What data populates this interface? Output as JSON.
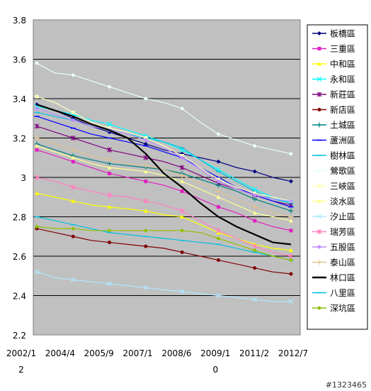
{
  "chart_data": {
    "type": "line",
    "title": "",
    "xlabel": "",
    "ylabel": "",
    "ylim": [
      2.2,
      3.8
    ],
    "y_ticks": [
      "3.8",
      "3.6",
      "3.4",
      "3.2",
      "3",
      "2.8",
      "2.6",
      "2.4",
      "2.2"
    ],
    "x_tick_labels": [
      {
        "line1": "2002/1",
        "line2": "2"
      },
      {
        "line1": "2004/4",
        "line2": ""
      },
      {
        "line1": "2005/9",
        "line2": ""
      },
      {
        "line1": "2007/1",
        "line2": ""
      },
      {
        "line1": "2008/6",
        "line2": ""
      },
      {
        "line1": "2009/1",
        "line2": "0"
      },
      {
        "line1": "2011/2",
        "line2": ""
      },
      {
        "line1": "2012/7",
        "line2": ""
      }
    ],
    "x": [
      0,
      1,
      2,
      3,
      4,
      5,
      6,
      7,
      8,
      9,
      10,
      11,
      12,
      13,
      14
    ],
    "grid": "horizontal",
    "legend_position": "right",
    "plot_background": "#c0c0c0",
    "series": [
      {
        "name": "板橋區",
        "color": "#000080",
        "marker": "diamond",
        "values": [
          3.37,
          3.34,
          3.3,
          3.26,
          3.23,
          3.2,
          3.17,
          3.14,
          3.12,
          3.1,
          3.08,
          3.05,
          3.03,
          3.0,
          2.98
        ]
      },
      {
        "name": "三重區",
        "color": "#e020c0",
        "marker": "square",
        "values": [
          3.14,
          3.11,
          3.08,
          3.05,
          3.02,
          3.0,
          2.98,
          2.96,
          2.93,
          2.89,
          2.85,
          2.82,
          2.78,
          2.75,
          2.73
        ]
      },
      {
        "name": "中和區",
        "color": "#ffff00",
        "marker": "triangle",
        "values": [
          2.92,
          2.9,
          2.88,
          2.86,
          2.85,
          2.84,
          2.83,
          2.81,
          2.8,
          2.76,
          2.72,
          2.69,
          2.66,
          2.64,
          2.63
        ]
      },
      {
        "name": "永和區",
        "color": "#00ffff",
        "marker": "x",
        "values": [
          3.36,
          3.34,
          3.32,
          3.29,
          3.27,
          3.24,
          3.21,
          3.18,
          3.14,
          3.09,
          3.04,
          2.99,
          2.94,
          2.9,
          2.87
        ]
      },
      {
        "name": "新莊區",
        "color": "#800080",
        "marker": "star",
        "values": [
          3.26,
          3.23,
          3.2,
          3.17,
          3.14,
          3.12,
          3.1,
          3.08,
          3.05,
          3.01,
          2.97,
          2.94,
          2.91,
          2.88,
          2.86
        ]
      },
      {
        "name": "新店區",
        "color": "#800000",
        "marker": "circle",
        "values": [
          2.74,
          2.72,
          2.7,
          2.68,
          2.67,
          2.66,
          2.65,
          2.64,
          2.62,
          2.6,
          2.58,
          2.56,
          2.54,
          2.52,
          2.51
        ]
      },
      {
        "name": "土城區",
        "color": "#008080",
        "marker": "plus",
        "values": [
          3.17,
          3.14,
          3.11,
          3.09,
          3.07,
          3.06,
          3.05,
          3.04,
          3.02,
          2.99,
          2.96,
          2.93,
          2.89,
          2.86,
          2.83
        ]
      },
      {
        "name": "蘆洲區",
        "color": "#0000ff",
        "marker": "dash",
        "values": [
          3.31,
          3.28,
          3.25,
          3.22,
          3.2,
          3.18,
          3.16,
          3.13,
          3.1,
          3.05,
          3.0,
          2.95,
          2.91,
          2.88,
          2.85
        ]
      },
      {
        "name": "樹林區",
        "color": "#00c0e0",
        "marker": "dash",
        "values": [
          3.33,
          3.31,
          3.29,
          3.26,
          3.24,
          3.22,
          3.2,
          3.18,
          3.15,
          3.09,
          3.03,
          2.98,
          2.93,
          2.89,
          2.87
        ]
      },
      {
        "name": "鶯歌區",
        "color": "#e8ffff",
        "marker": "diamond",
        "values": [
          3.58,
          3.53,
          3.52,
          3.49,
          3.46,
          3.43,
          3.4,
          3.38,
          3.35,
          3.28,
          3.22,
          3.19,
          3.16,
          3.14,
          3.12
        ]
      },
      {
        "name": "三峽區",
        "color": "#ffffc0",
        "marker": "square",
        "values": [
          3.41,
          3.38,
          3.33,
          3.28,
          3.25,
          3.23,
          3.2,
          3.16,
          3.11,
          3.05,
          2.99,
          2.95,
          2.92,
          2.9,
          2.88
        ]
      },
      {
        "name": "淡水區",
        "color": "#ffff90",
        "marker": "triangle",
        "values": [
          3.16,
          3.13,
          3.1,
          3.07,
          3.05,
          3.04,
          3.03,
          3.01,
          2.98,
          2.94,
          2.9,
          2.86,
          2.82,
          2.8,
          2.78
        ]
      },
      {
        "name": "汐止區",
        "color": "#b0e8ff",
        "marker": "x",
        "values": [
          2.52,
          2.49,
          2.48,
          2.47,
          2.46,
          2.45,
          2.44,
          2.43,
          2.42,
          2.41,
          2.4,
          2.39,
          2.38,
          2.37,
          2.37
        ]
      },
      {
        "name": "瑞芳區",
        "color": "#ff80c0",
        "marker": "star",
        "values": [
          3.0,
          2.98,
          2.95,
          2.93,
          2.91,
          2.9,
          2.88,
          2.86,
          2.83,
          2.78,
          2.73,
          2.69,
          2.65,
          2.62,
          2.6
        ]
      },
      {
        "name": "五股區",
        "color": "#c090ff",
        "marker": "circle",
        "values": [
          3.35,
          3.32,
          3.29,
          3.26,
          3.24,
          3.22,
          3.19,
          3.15,
          3.1,
          3.04,
          2.98,
          2.94,
          2.91,
          2.89,
          2.88
        ]
      },
      {
        "name": "泰山區",
        "color": "#e0c090",
        "marker": "plus",
        "values": [
          3.2,
          3.17,
          3.14,
          3.11,
          3.09,
          3.07,
          3.06,
          3.04,
          3.01,
          2.97,
          2.93,
          2.89,
          2.85,
          2.82,
          2.8
        ]
      },
      {
        "name": "林口區",
        "color": "#000000",
        "marker": "none",
        "values": [
          3.37,
          3.34,
          3.31,
          3.27,
          3.24,
          3.2,
          3.12,
          3.02,
          2.95,
          2.87,
          2.8,
          2.75,
          2.71,
          2.67,
          2.66
        ]
      },
      {
        "name": "八里區",
        "color": "#00c0e0",
        "marker": "dash",
        "values": [
          2.8,
          2.78,
          2.76,
          2.74,
          2.72,
          2.71,
          2.7,
          2.69,
          2.68,
          2.67,
          2.66,
          2.64,
          2.62,
          2.6,
          2.58
        ]
      },
      {
        "name": "深坑區",
        "color": "#90c000",
        "marker": "diamond",
        "values": [
          2.75,
          2.74,
          2.74,
          2.73,
          2.73,
          2.73,
          2.73,
          2.73,
          2.73,
          2.72,
          2.69,
          2.66,
          2.63,
          2.6,
          2.58
        ]
      }
    ]
  },
  "watermark": "#1323465"
}
